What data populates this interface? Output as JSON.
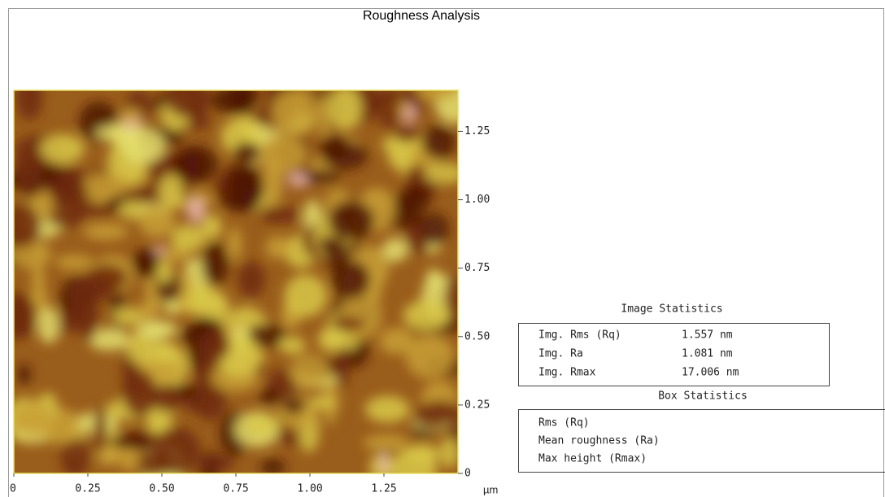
{
  "title": "Roughness Analysis",
  "image": {
    "xlim": [
      0,
      1.5
    ],
    "ylim": [
      0,
      1.4
    ],
    "xticks": [
      0,
      0.25,
      {
        "value": 0.5,
        "label": "0.50"
      },
      0.75,
      {
        "value": 1,
        "label": "1.00"
      },
      1.25
    ],
    "yticks": [
      0,
      0.25,
      {
        "value": 0.5,
        "label": "0.50"
      },
      0.75,
      {
        "value": 1,
        "label": "1.00"
      },
      1.25
    ],
    "x_unit": "µm"
  },
  "image_statistics": {
    "title": "Image Statistics",
    "rows": [
      [
        "Img. Rms (Rq)",
        "1.557 nm"
      ],
      [
        "Img. Ra",
        "1.081 nm"
      ],
      [
        "Img. Rmax",
        "17.006 nm"
      ]
    ]
  },
  "box_statistics": {
    "title": "Box Statistics",
    "rows": [
      "Rms (Rq)",
      "Mean roughness (Ra)",
      "Max height (Rmax)"
    ]
  }
}
